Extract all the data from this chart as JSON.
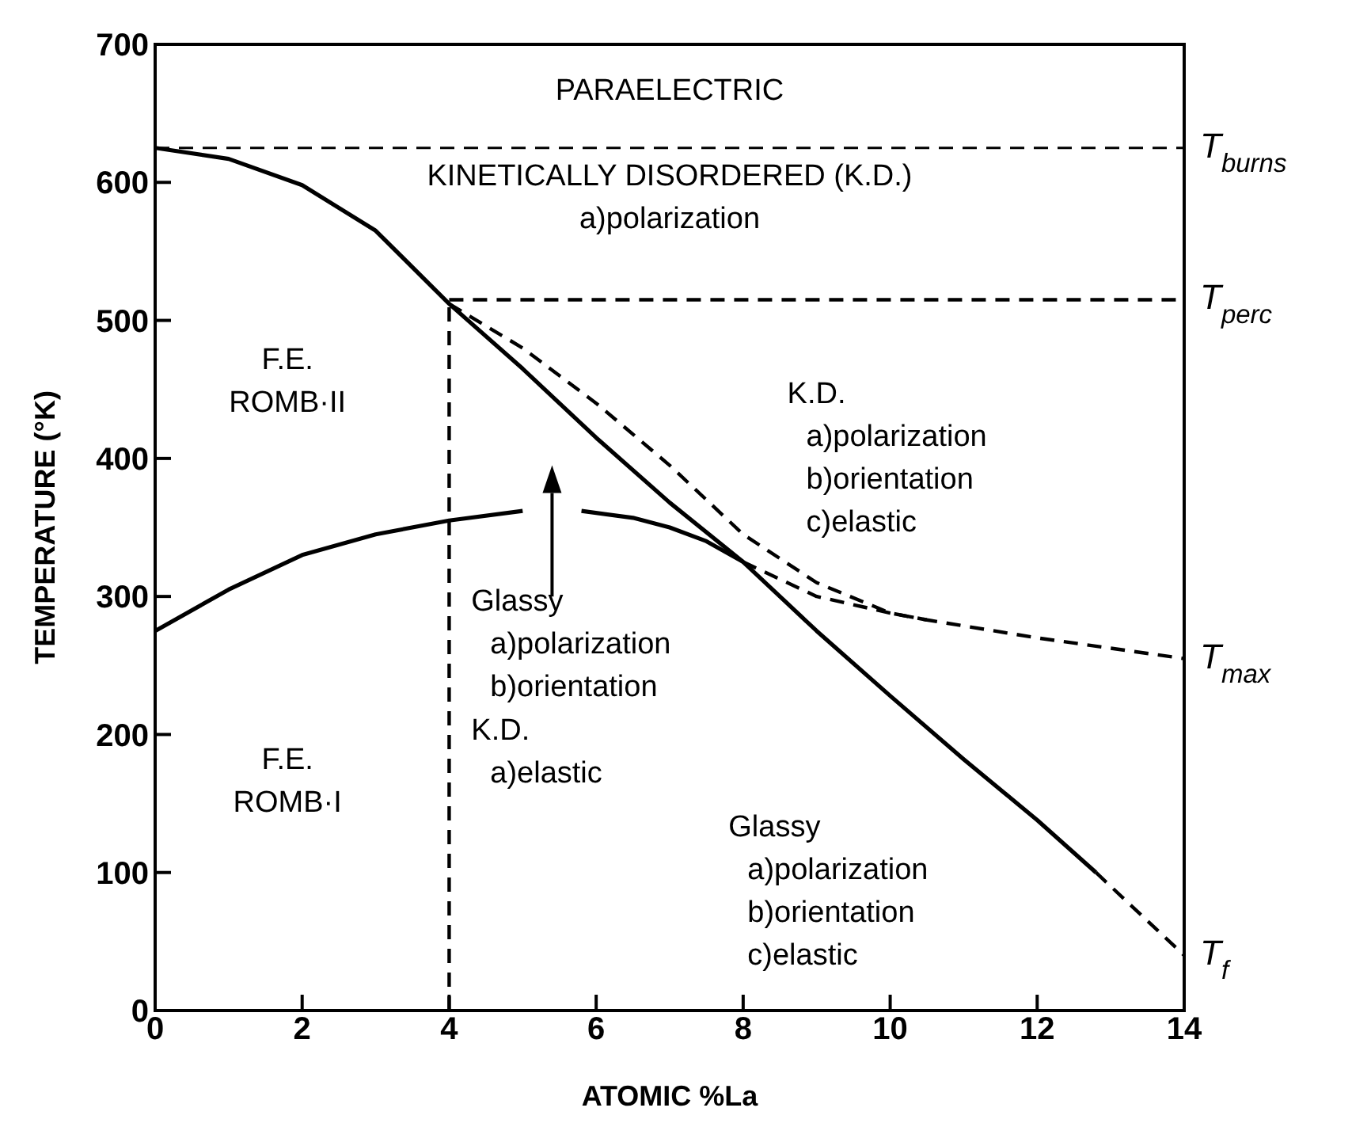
{
  "chart_data": {
    "type": "line",
    "xlabel": "ATOMIC %La",
    "ylabel": "TEMPERATURE (°K)",
    "xlim": [
      0,
      14
    ],
    "ylim": [
      0,
      700
    ],
    "xticks": [
      0,
      2,
      4,
      6,
      8,
      10,
      12,
      14
    ],
    "yticks": [
      0,
      100,
      200,
      300,
      400,
      500,
      600,
      700
    ],
    "marker": "none",
    "series": [
      {
        "color": "#000000",
        "line_style": "solid",
        "x": [
          0,
          1,
          2,
          3,
          4,
          5,
          6,
          7,
          8,
          9,
          10,
          11,
          12,
          12.8
        ],
        "values": [
          625,
          617,
          598,
          565,
          512,
          465,
          415,
          368,
          325,
          275,
          228,
          182,
          138,
          100
        ]
      },
      {
        "name": "T$_{f}$",
        "color": "#000000",
        "line_style": "dashed",
        "x": [
          12.8,
          13.5,
          14
        ],
        "values": [
          100,
          65,
          40
        ]
      },
      {
        "color": "#000000",
        "line_style": "solid",
        "x": [
          0,
          1,
          2,
          3,
          4,
          5,
          5.4,
          5.8,
          6.5,
          7,
          7.5,
          8
        ],
        "values": [
          275,
          305,
          330,
          345,
          355,
          362,
          null,
          362,
          357,
          350,
          340,
          325
        ]
      },
      {
        "color": "#000000",
        "line_style": "dashed",
        "x": [
          4,
          5,
          6,
          7,
          8,
          9,
          10,
          10.5
        ],
        "values": [
          512,
          480,
          440,
          395,
          345,
          310,
          288,
          283
        ]
      },
      {
        "name": "T$_{max}$",
        "color": "#000000",
        "line_style": "dashed",
        "x": [
          8,
          9,
          10,
          10.5,
          12,
          14
        ],
        "values": [
          325,
          300,
          288,
          283,
          270,
          255
        ]
      },
      {
        "name": "T$_{perc}$",
        "color": "#000000",
        "line_style": "dashed",
        "x": [
          4,
          14
        ],
        "values": [
          515,
          515
        ]
      },
      {
        "color": "#000000",
        "line_style": "dashed",
        "x": [
          4,
          4
        ],
        "values": [
          0,
          512
        ]
      }
    ],
    "ref_lines": [
      {
        "axis": "y",
        "value": 625,
        "label": "T$_{burns}$",
        "color": "#000000",
        "line_style": "dashed"
      }
    ],
    "annotations": [
      "PARAELECTRIC",
      "KINETICALLY DISORDERED (K.D.)\na)polarization",
      "F.E.\nROMB·II",
      "K.D.\na)polarization\nb)orientation\nc)elastic",
      "Glassy\na)polarization\nb)orientation",
      "K.D.\na)elastic",
      "F.E.\nROMB·I",
      "Glassy\na)polarization\nb)orientation\nc)elastic"
    ]
  }
}
